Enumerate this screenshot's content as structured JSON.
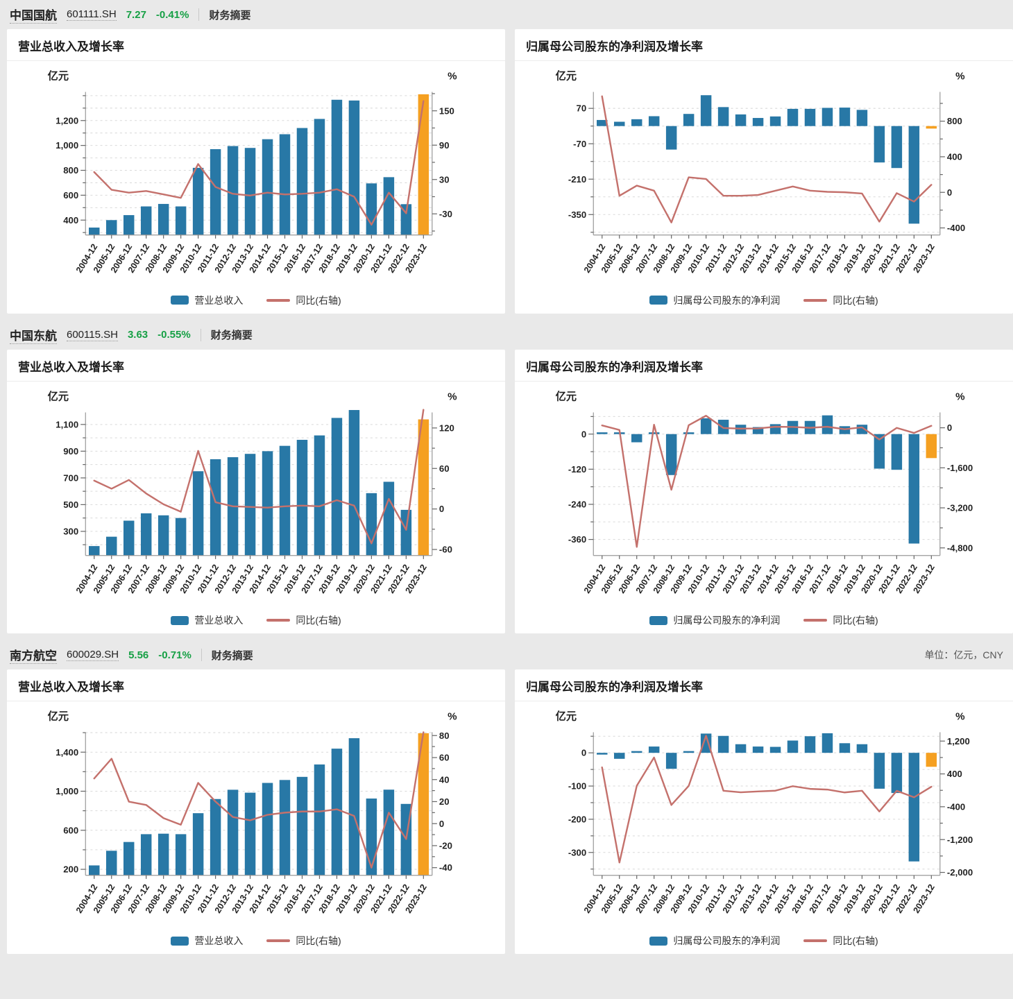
{
  "page": {
    "unit_note": "单位：亿元，CNY",
    "summary_label": "财务摘要"
  },
  "colors": {
    "bar": "#2878a6",
    "bar_highlight": "#f5a021",
    "line": "#c4716c",
    "grid": "#d9d9d9",
    "axis": "#999999",
    "tick": "#666666",
    "label": "#222222",
    "green": "#16a045"
  },
  "stocks": [
    {
      "name": "中国国航",
      "code": "601111.SH",
      "price": "7.27",
      "change": "-0.41%"
    },
    {
      "name": "中国东航",
      "code": "600115.SH",
      "price": "3.63",
      "change": "-0.55%"
    },
    {
      "name": "南方航空",
      "code": "600029.SH",
      "price": "5.56",
      "change": "-0.71%"
    }
  ],
  "chart_data": [
    {
      "type": "bar",
      "stock": "中国国航",
      "title": "营业总收入及增长率",
      "categories": [
        "2004-12",
        "2005-12",
        "2006-12",
        "2007-12",
        "2008-12",
        "2009-12",
        "2010-12",
        "2011-12",
        "2012-12",
        "2013-12",
        "2014-12",
        "2015-12",
        "2016-12",
        "2017-12",
        "2018-12",
        "2019-12",
        "2020-12",
        "2021-12",
        "2022-12",
        "2023-12"
      ],
      "bars": {
        "name": "营业总收入",
        "values": [
          340,
          400,
          440,
          510,
          530,
          510,
          820,
          970,
          995,
          980,
          1050,
          1090,
          1140,
          1213,
          1367,
          1361,
          695,
          745,
          528,
          1411
        ],
        "highlight_last": true
      },
      "line": {
        "name": "同比(右轴)",
        "values": [
          43,
          12,
          7,
          10,
          4,
          -2,
          57,
          17,
          5,
          2,
          7,
          4,
          5,
          7,
          13,
          0,
          -49,
          7,
          -29,
          167
        ]
      },
      "left_axis": {
        "label": "亿元",
        "ticks": [
          1200,
          1000,
          800,
          600,
          400
        ],
        "min": 280,
        "max": 1430
      },
      "right_axis": {
        "label": "%",
        "ticks": [
          150,
          90,
          30,
          -30
        ],
        "min": -67,
        "max": 183
      }
    },
    {
      "type": "bar",
      "stock": "中国国航",
      "title": "归属母公司股东的净利润及增长率",
      "categories": [
        "2004-12",
        "2005-12",
        "2006-12",
        "2007-12",
        "2008-12",
        "2009-12",
        "2010-12",
        "2011-12",
        "2012-12",
        "2013-12",
        "2014-12",
        "2015-12",
        "2016-12",
        "2017-12",
        "2018-12",
        "2019-12",
        "2020-12",
        "2021-12",
        "2022-12",
        "2023-12"
      ],
      "bars": {
        "name": "归属母公司股东的净利润",
        "values": [
          24,
          17,
          27,
          39,
          -93,
          48,
          122,
          75,
          46,
          32,
          38,
          68,
          68,
          72,
          73,
          64,
          -144,
          -166,
          -386,
          -10
        ],
        "highlight_last": true
      },
      "line": {
        "name": "同比(右轴)",
        "values": [
          1080,
          -38,
          75,
          19,
          -339,
          169,
          150,
          -38,
          -38,
          -30,
          18,
          66,
          19,
          6,
          1,
          -13,
          -329,
          -9,
          -104,
          85
        ]
      },
      "left_axis": {
        "label": "亿元",
        "ticks": [
          70,
          -70,
          -210,
          -350
        ],
        "min": -431,
        "max": 135
      },
      "right_axis": {
        "label": "%",
        "ticks": [
          800,
          400,
          0,
          -400
        ],
        "min": -480,
        "max": 1129
      }
    },
    {
      "type": "bar",
      "stock": "中国东航",
      "title": "营业总收入及增长率",
      "categories": [
        "2004-12",
        "2005-12",
        "2006-12",
        "2007-12",
        "2008-12",
        "2009-12",
        "2010-12",
        "2011-12",
        "2012-12",
        "2013-12",
        "2014-12",
        "2015-12",
        "2016-12",
        "2017-12",
        "2018-12",
        "2019-12",
        "2020-12",
        "2021-12",
        "2022-12",
        "2023-12"
      ],
      "bars": {
        "name": "营业总收入",
        "values": [
          190,
          260,
          380,
          435,
          420,
          400,
          750,
          840,
          855,
          880,
          900,
          940,
          985,
          1018,
          1149,
          1208,
          586,
          671,
          461,
          1138
        ],
        "highlight_last": true
      },
      "line": {
        "name": "同比(右轴)",
        "values": [
          42,
          30,
          43,
          23,
          7,
          -4,
          86,
          10,
          4,
          3,
          2,
          4,
          5,
          4,
          13,
          5,
          -51,
          15,
          -31,
          147
        ]
      },
      "left_axis": {
        "label": "亿元",
        "ticks": [
          1100,
          900,
          700,
          500,
          300
        ],
        "min": 119,
        "max": 1190
      },
      "right_axis": {
        "label": "%",
        "ticks": [
          120,
          60,
          0,
          -60
        ],
        "min": -69,
        "max": 143
      }
    },
    {
      "type": "bar",
      "stock": "中国东航",
      "title": "归属母公司股东的净利润及增长率",
      "categories": [
        "2004-12",
        "2005-12",
        "2006-12",
        "2007-12",
        "2008-12",
        "2009-12",
        "2010-12",
        "2011-12",
        "2012-12",
        "2013-12",
        "2014-12",
        "2015-12",
        "2016-12",
        "2017-12",
        "2018-12",
        "2019-12",
        "2020-12",
        "2021-12",
        "2022-12",
        "2023-12"
      ],
      "bars": {
        "name": "归属母公司股东的净利润",
        "values": [
          5,
          2,
          -28,
          6,
          -140,
          5,
          54,
          49,
          32,
          24,
          34,
          45,
          45,
          64,
          27,
          32,
          -118,
          -122,
          -374,
          -82
        ],
        "highlight_last": true
      },
      "line": {
        "name": "同比(右轴)",
        "values": [
          94,
          -89,
          -4760,
          121,
          -2477,
          104,
          480,
          -9,
          -35,
          -25,
          40,
          33,
          0,
          42,
          -58,
          18,
          -470,
          -3,
          -206,
          78
        ]
      },
      "left_axis": {
        "label": "亿元",
        "ticks": [
          0,
          -120,
          -240,
          -360
        ],
        "min": -415,
        "max": 74
      },
      "right_axis": {
        "label": "%",
        "ticks": [
          0,
          -1600,
          -3200,
          -4800
        ],
        "min": -5106,
        "max": 613
      }
    },
    {
      "type": "bar",
      "stock": "南方航空",
      "title": "营业总收入及增长率",
      "categories": [
        "2004-12",
        "2005-12",
        "2006-12",
        "2007-12",
        "2008-12",
        "2009-12",
        "2010-12",
        "2011-12",
        "2012-12",
        "2013-12",
        "2014-12",
        "2015-12",
        "2016-12",
        "2017-12",
        "2018-12",
        "2019-12",
        "2020-12",
        "2021-12",
        "2022-12",
        "2023-12"
      ],
      "bars": {
        "name": "营业总收入",
        "values": [
          240,
          390,
          480,
          560,
          565,
          560,
          775,
          920,
          1015,
          985,
          1085,
          1115,
          1147,
          1274,
          1436,
          1543,
          925,
          1016,
          870,
          1594
        ],
        "highlight_last": true
      },
      "line": {
        "name": "同比(右轴)",
        "values": [
          41,
          59,
          20,
          17,
          5,
          -1,
          37,
          20,
          6,
          3,
          8,
          10,
          11,
          11,
          13,
          7,
          -40,
          10,
          -14,
          83
        ]
      },
      "left_axis": {
        "label": "亿元",
        "ticks": [
          1400,
          1000,
          600,
          200
        ],
        "min": 138,
        "max": 1604
      },
      "right_axis": {
        "label": "%",
        "ticks": [
          80,
          60,
          40,
          20,
          0,
          -20,
          -40
        ],
        "min": -47,
        "max": 83
      }
    },
    {
      "type": "bar",
      "stock": "南方航空",
      "title": "归属母公司股东的净利润及增长率",
      "categories": [
        "2004-12",
        "2005-12",
        "2006-12",
        "2007-12",
        "2008-12",
        "2009-12",
        "2010-12",
        "2011-12",
        "2012-12",
        "2013-12",
        "2014-12",
        "2015-12",
        "2016-12",
        "2017-12",
        "2018-12",
        "2019-12",
        "2020-12",
        "2021-12",
        "2022-12",
        "2023-12"
      ],
      "bars": {
        "name": "归属母公司股东的净利润",
        "values": [
          -3,
          -18,
          2,
          19,
          -48,
          3,
          58,
          51,
          26,
          19,
          18,
          37,
          50,
          59,
          29,
          26,
          -108,
          -121,
          -327,
          -42
        ],
        "highlight_last": true
      },
      "line": {
        "name": "同比(右轴)",
        "values": [
          560,
          -1760,
          110,
          800,
          -358,
          107,
          1330,
          -11,
          -49,
          -27,
          -9,
          101,
          35,
          18,
          -51,
          -10,
          -515,
          -12,
          -170,
          87
        ]
      },
      "left_axis": {
        "label": "亿元",
        "ticks": [
          0,
          -100,
          -200,
          -300
        ],
        "min": -369,
        "max": 62
      },
      "right_axis": {
        "label": "%",
        "ticks": [
          1200,
          400,
          -400,
          -1200,
          -2000
        ],
        "min": -2072,
        "max": 1415
      }
    }
  ]
}
